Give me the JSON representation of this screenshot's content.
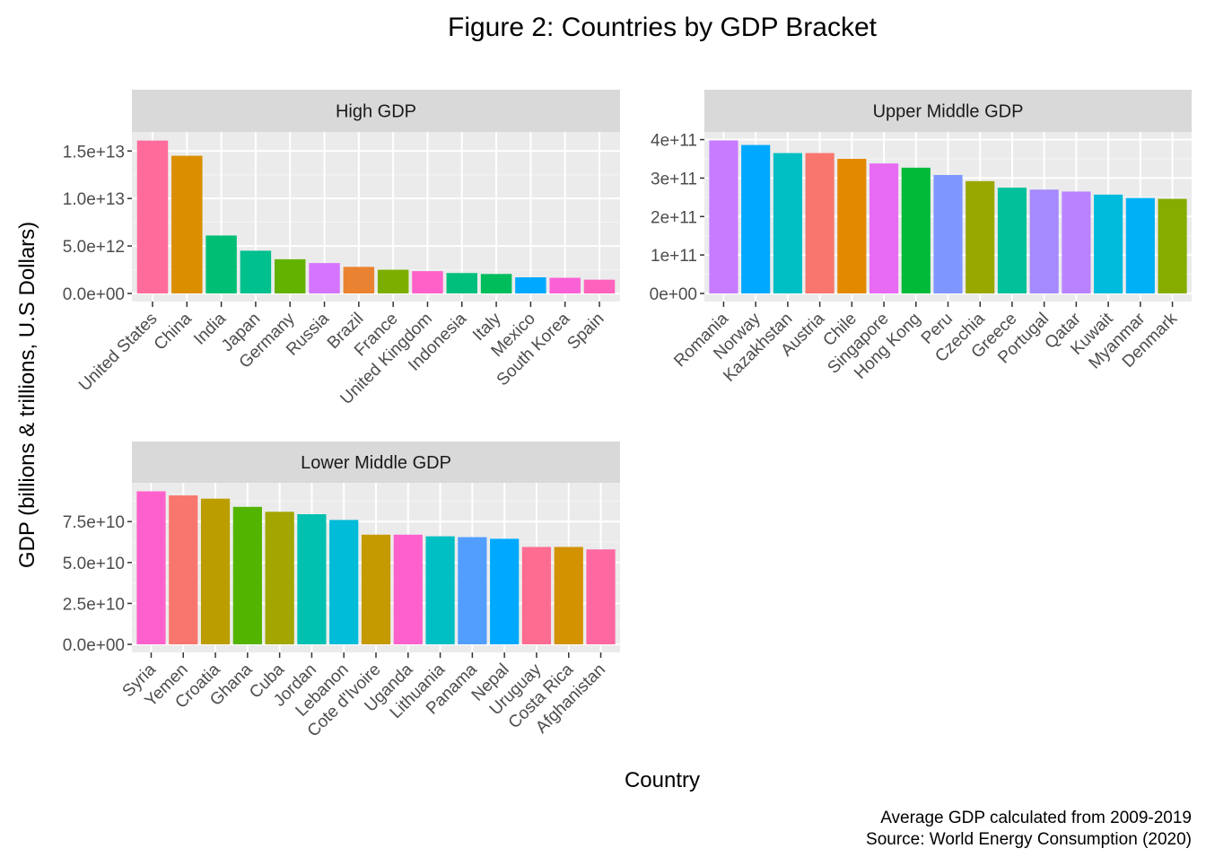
{
  "figure": {
    "title": "Figure 2: Countries by GDP Bracket",
    "xlabel": "Country",
    "ylabel": "GDP (billions & trillions, U.S Dollars)",
    "caption_lines": [
      "Average GDP calculated from 2009-2019",
      "Source: World Energy Consumption (2020)"
    ]
  },
  "chart_data": [
    {
      "type": "bar",
      "title": "High GDP",
      "categories": [
        "United States",
        "China",
        "India",
        "Japan",
        "Germany",
        "Russia",
        "Brazil",
        "France",
        "United Kingdom",
        "Indonesia",
        "Italy",
        "Mexico",
        "South Korea",
        "Spain"
      ],
      "values": [
        16100000000000.0,
        14500000000000.0,
        6100000000000.0,
        4500000000000.0,
        3600000000000.0,
        3200000000000.0,
        2800000000000.0,
        2500000000000.0,
        2350000000000.0,
        2150000000000.0,
        2050000000000.0,
        1700000000000.0,
        1650000000000.0,
        1450000000000.0
      ],
      "colors": [
        "#FF6C9C",
        "#DB8E00",
        "#00BF74",
        "#00C08D",
        "#64B200",
        "#D575FE",
        "#EA8331",
        "#7CAE00",
        "#FF61C9",
        "#00BF7D",
        "#00BD5C",
        "#00A9FF",
        "#FB61D7",
        "#FF62BC"
      ],
      "ylim": [
        0,
        16200000000000.0
      ],
      "yticks": [
        0,
        5000000000000.0,
        10000000000000.0,
        15000000000000.0
      ],
      "ytick_labels": [
        "0.0e+00",
        "5.0e+12",
        "1.0e+13",
        "1.5e+13"
      ]
    },
    {
      "type": "bar",
      "title": "Upper Middle GDP",
      "categories": [
        "Romania",
        "Norway",
        "Kazakhstan",
        "Austria",
        "Chile",
        "Singapore",
        "Hong Kong",
        "Peru",
        "Czechia",
        "Greece",
        "Portugal",
        "Qatar",
        "Kuwait",
        "Myanmar",
        "Denmark"
      ],
      "values": [
        398000000000.0,
        386000000000.0,
        365000000000.0,
        365000000000.0,
        350000000000.0,
        338000000000.0,
        327000000000.0,
        308000000000.0,
        292000000000.0,
        275000000000.0,
        270000000000.0,
        265000000000.0,
        257000000000.0,
        248000000000.0,
        246000000000.0
      ],
      "colors": [
        "#C77CFF",
        "#00A9FF",
        "#00BFC4",
        "#F8766D",
        "#E38900",
        "#E76BF3",
        "#00BA38",
        "#7E96FF",
        "#99A800",
        "#00C19A",
        "#A58AFF",
        "#B983FF",
        "#00BBDB",
        "#00B0F6",
        "#86AC00"
      ],
      "ylim": [
        0,
        400000000000.0
      ],
      "yticks": [
        0,
        100000000000.0,
        200000000000.0,
        300000000000.0,
        400000000000.0
      ],
      "ytick_labels": [
        "0e+00",
        "1e+11",
        "2e+11",
        "3e+11",
        "4e+11"
      ]
    },
    {
      "type": "bar",
      "title": "Lower Middle GDP",
      "categories": [
        "Syria",
        "Yemen",
        "Croatia",
        "Ghana",
        "Cuba",
        "Jordan",
        "Lebanon",
        "Cote d'Ivoire",
        "Uganda",
        "Lithuania",
        "Panama",
        "Nepal",
        "Uruguay",
        "Costa Rica",
        "Afghanistan"
      ],
      "values": [
        93500000000.0,
        91000000000.0,
        89000000000.0,
        84000000000.0,
        81000000000.0,
        79500000000.0,
        76000000000.0,
        67000000000.0,
        67000000000.0,
        66000000000.0,
        65500000000.0,
        64500000000.0,
        59500000000.0,
        59500000000.0,
        58000000000.0
      ],
      "colors": [
        "#FF61CC",
        "#F8766D",
        "#BB9D00",
        "#53B400",
        "#A3A500",
        "#00C0AF",
        "#00BCD8",
        "#C49A00",
        "#FF61CC",
        "#00BFC4",
        "#529EFF",
        "#00A9FF",
        "#FF6C91",
        "#D39200",
        "#FF68A1"
      ],
      "ylim": [
        0,
        94000000000.0
      ],
      "yticks": [
        0,
        25000000000.0,
        50000000000.0,
        75000000000.0
      ],
      "ytick_labels": [
        "0.0e+00",
        "2.5e+10",
        "5.0e+10",
        "7.5e+10"
      ]
    }
  ]
}
